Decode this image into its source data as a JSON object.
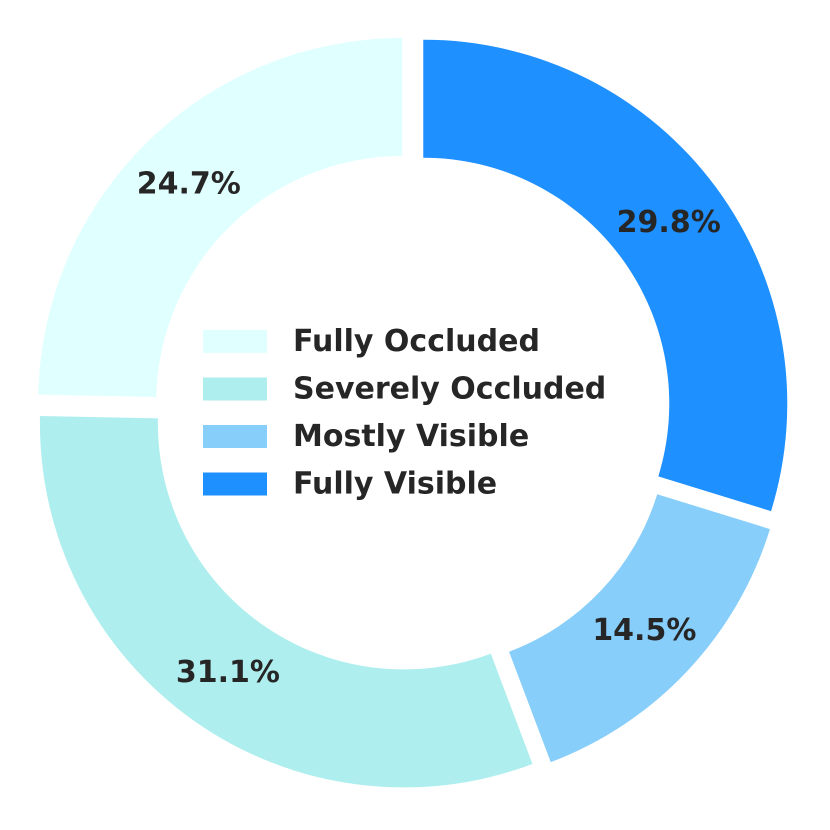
{
  "chart_data": {
    "type": "pie",
    "style": "donut",
    "title": "",
    "legend_placement": "center",
    "categories": [
      "Fully Occluded",
      "Severely Occluded",
      "Mostly Visible",
      "Fully Visible"
    ],
    "values": [
      24.7,
      31.1,
      14.5,
      29.8
    ],
    "labels": [
      "24.7%",
      "31.1%",
      "14.5%",
      "29.8%"
    ],
    "colors": [
      "#e0ffff",
      "#afeeee",
      "#87cefa",
      "#1e90ff"
    ]
  }
}
